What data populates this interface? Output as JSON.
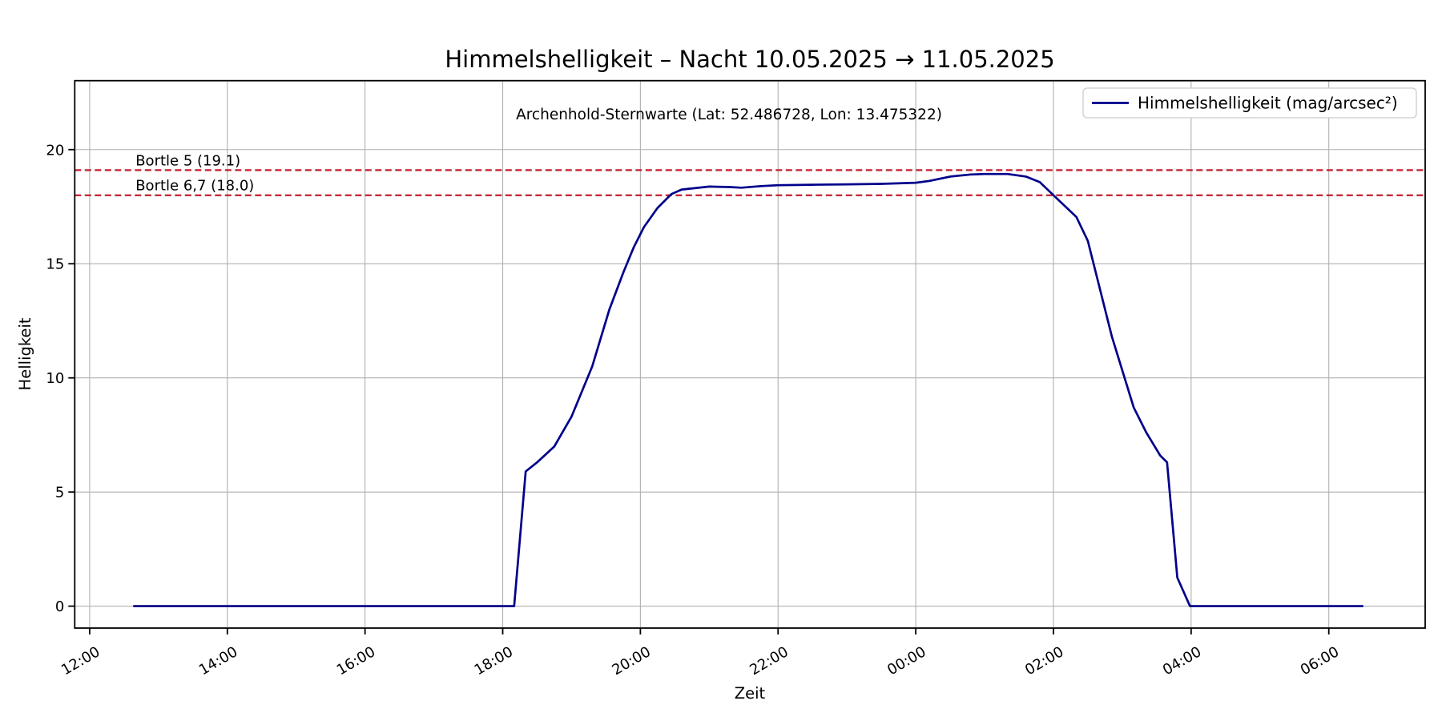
{
  "title": "Himmelshelligkeit – Nacht 10.05.2025 → 11.05.2025",
  "annotation": "Archenhold-Sternwarte (Lat: 52.486728, Lon: 13.475322)",
  "legend": {
    "label": "Himmelshelligkeit (mag/arcsec²)"
  },
  "axes": {
    "xlabel": "Zeit",
    "ylabel": "Helligkeit"
  },
  "colors": {
    "series": "#00008B",
    "reference": "#C01F2E",
    "grid": "#b0b0b0",
    "spine": "#000000",
    "background": "#ffffff"
  },
  "chart_data": {
    "type": "line",
    "title": "Himmelshelligkeit – Nacht 10.05.2025 → 11.05.2025",
    "subtitle": "Archenhold-Sternwarte (Lat: 52.486728, Lon: 13.475322)",
    "xlabel": "Zeit",
    "ylabel": "Helligkeit",
    "grid": true,
    "legend_position": "upper right",
    "xlim": {
      "start": "11:47",
      "end": "07:24"
    },
    "ylim": [
      -0.96,
      23.02
    ],
    "xticks": [
      "12:00",
      "14:00",
      "16:00",
      "18:00",
      "20:00",
      "22:00",
      "00:00",
      "02:00",
      "04:00",
      "06:00"
    ],
    "yticks": [
      0,
      5,
      10,
      15,
      20
    ],
    "reference_lines": [
      {
        "label": "Bortle 5 (19.1)",
        "value": 19.1,
        "style": "dashed",
        "label_x_time": "12:40"
      },
      {
        "label": "Bortle 6,7 (18.0)",
        "value": 18.0,
        "style": "dashed",
        "label_x_time": "12:40"
      }
    ],
    "series": [
      {
        "name": "Himmelshelligkeit (mag/arcsec²)",
        "points": [
          [
            "12:38",
            0.0
          ],
          [
            "13:30",
            0.0
          ],
          [
            "14:30",
            0.0
          ],
          [
            "15:30",
            0.0
          ],
          [
            "16:30",
            0.0
          ],
          [
            "17:30",
            0.0
          ],
          [
            "18:10",
            0.0
          ],
          [
            "18:20",
            5.9
          ],
          [
            "18:30",
            6.3
          ],
          [
            "18:45",
            7.0
          ],
          [
            "19:00",
            8.3
          ],
          [
            "19:18",
            10.5
          ],
          [
            "19:33",
            13.0
          ],
          [
            "19:45",
            14.6
          ],
          [
            "19:54",
            15.7
          ],
          [
            "20:03",
            16.6
          ],
          [
            "20:15",
            17.45
          ],
          [
            "20:27",
            18.05
          ],
          [
            "20:36",
            18.25
          ],
          [
            "21:00",
            18.38
          ],
          [
            "21:18",
            18.36
          ],
          [
            "21:28",
            18.33
          ],
          [
            "21:45",
            18.4
          ],
          [
            "22:00",
            18.44
          ],
          [
            "22:30",
            18.46
          ],
          [
            "23:00",
            18.48
          ],
          [
            "23:30",
            18.5
          ],
          [
            "00:00",
            18.55
          ],
          [
            "00:12",
            18.63
          ],
          [
            "00:30",
            18.82
          ],
          [
            "00:48",
            18.91
          ],
          [
            "01:00",
            18.93
          ],
          [
            "01:20",
            18.93
          ],
          [
            "01:36",
            18.82
          ],
          [
            "01:48",
            18.58
          ],
          [
            "02:00",
            18.0
          ],
          [
            "02:20",
            17.05
          ],
          [
            "02:30",
            16.0
          ],
          [
            "02:51",
            11.8
          ],
          [
            "03:10",
            8.7
          ],
          [
            "03:21",
            7.6
          ],
          [
            "03:33",
            6.6
          ],
          [
            "03:39",
            6.3
          ],
          [
            "03:48",
            1.25
          ],
          [
            "03:59",
            0.0
          ],
          [
            "04:30",
            0.0
          ],
          [
            "05:00",
            0.0
          ],
          [
            "05:30",
            0.0
          ],
          [
            "06:00",
            0.0
          ],
          [
            "06:30",
            0.0
          ]
        ]
      }
    ]
  }
}
